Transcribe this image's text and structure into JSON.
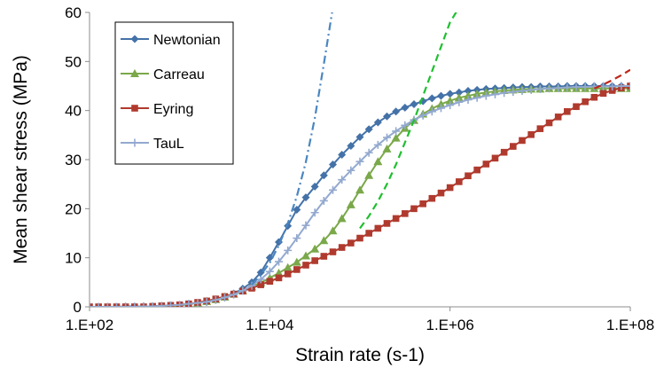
{
  "chart_data": {
    "type": "line",
    "title": "",
    "xlabel": "Strain rate (s-1)",
    "ylabel": "Mean shear stress (MPa)",
    "x_scale": "log",
    "xlim": [
      100,
      100000000
    ],
    "ylim": [
      0,
      60
    ],
    "x_ticks": [
      100,
      10000,
      1000000,
      100000000
    ],
    "x_tick_labels": [
      "1.E+02",
      "1.E+04",
      "1.E+06",
      "1.E+08"
    ],
    "y_ticks": [
      0,
      10,
      20,
      30,
      40,
      50,
      60
    ],
    "y_tick_labels": [
      "0",
      "10",
      "20",
      "30",
      "40",
      "50",
      "60"
    ],
    "grid": false,
    "legend_position": "top-left",
    "series": [
      {
        "name": "Newtonian",
        "color": "#4472a8",
        "marker": "diamond",
        "line": "solid",
        "x": [
          100,
          125.9,
          158.5,
          199.5,
          251.2,
          316.2,
          398.1,
          501.2,
          631,
          794.3,
          1000,
          1259,
          1585,
          1995,
          2512,
          3162,
          3981,
          5012,
          6310,
          7943,
          10000,
          12590,
          15850,
          19950,
          25120,
          31620,
          39810,
          50120,
          63100,
          79430,
          100000,
          125900,
          158500,
          199500,
          251200,
          316200,
          398100,
          501200,
          631000,
          794300,
          1000000,
          1259000,
          1585000,
          1995000,
          2512000,
          3162000,
          3981000,
          5012000,
          6310000,
          7943000,
          10000000,
          12590000,
          15850000,
          19950000,
          25120000,
          31620000,
          39810000,
          50120000,
          63100000,
          79430000,
          100000000
        ],
        "y": [
          0,
          0,
          0,
          0,
          0.1,
          0.1,
          0.1,
          0.1,
          0.2,
          0.3,
          0.4,
          0.6,
          0.8,
          1.1,
          1.5,
          2.0,
          2.7,
          3.7,
          5.0,
          7.0,
          10.0,
          13.2,
          16.5,
          19.8,
          22.3,
          24.5,
          26.8,
          29.0,
          31.0,
          32.8,
          34.6,
          36.2,
          37.6,
          38.8,
          39.8,
          40.6,
          41.3,
          41.9,
          42.5,
          43.0,
          43.4,
          43.7,
          44.0,
          44.2,
          44.4,
          44.5,
          44.6,
          44.7,
          44.8,
          44.8,
          44.9,
          44.9,
          44.9,
          45.0,
          45.0,
          45.0,
          45.0,
          45.0,
          45.0,
          45.0,
          45.0
        ]
      },
      {
        "name": "Carreau",
        "color": "#7aa84a",
        "marker": "triangle",
        "line": "solid",
        "x": [
          100,
          125.9,
          158.5,
          199.5,
          251.2,
          316.2,
          398.1,
          501.2,
          631,
          794.3,
          1000,
          1259,
          1585,
          1995,
          2512,
          3162,
          3981,
          5012,
          6310,
          7943,
          10000,
          12590,
          15850,
          19950,
          25120,
          31620,
          39810,
          50120,
          63100,
          79430,
          100000,
          125900,
          158500,
          199500,
          251200,
          316200,
          398100,
          501200,
          631000,
          794300,
          1000000,
          1259000,
          1585000,
          1995000,
          2512000,
          3162000,
          3981000,
          5012000,
          6310000,
          7943000,
          10000000,
          12590000,
          15850000,
          19950000,
          25120000,
          31620000,
          39810000,
          50120000,
          63100000,
          79430000,
          100000000
        ],
        "y": [
          -0.3,
          -0.3,
          -0.3,
          -0.3,
          -0.3,
          -0.2,
          -0.2,
          -0.1,
          0,
          0.1,
          0.3,
          0.5,
          0.8,
          1.1,
          1.5,
          2.0,
          2.6,
          3.3,
          4.1,
          4.9,
          5.9,
          6.9,
          8.0,
          9.1,
          10.4,
          11.8,
          13.5,
          15.5,
          18.0,
          20.8,
          23.8,
          26.8,
          29.6,
          32.2,
          34.4,
          36.4,
          38.0,
          39.3,
          40.4,
          41.3,
          42.0,
          42.6,
          43.0,
          43.4,
          43.7,
          43.9,
          44.1,
          44.2,
          44.3,
          44.4,
          44.4,
          44.5,
          44.5,
          44.5,
          44.5,
          44.5,
          44.5,
          44.5,
          44.5,
          44.5,
          44.5
        ]
      },
      {
        "name": "Eyring",
        "color": "#b03a2e",
        "marker": "square",
        "line": "solid",
        "x": [
          100,
          125.9,
          158.5,
          199.5,
          251.2,
          316.2,
          398.1,
          501.2,
          631,
          794.3,
          1000,
          1259,
          1585,
          1995,
          2512,
          3162,
          3981,
          5012,
          6310,
          7943,
          10000,
          12590,
          15850,
          19950,
          25120,
          31620,
          39810,
          50120,
          63100,
          79430,
          100000,
          125900,
          158500,
          199500,
          251200,
          316200,
          398100,
          501200,
          631000,
          794300,
          1000000,
          1259000,
          1585000,
          1995000,
          2512000,
          3162000,
          3981000,
          5012000,
          6310000,
          7943000,
          10000000,
          12590000,
          15850000,
          19950000,
          25120000,
          31620000,
          39810000,
          50120000,
          63100000,
          79430000,
          100000000
        ],
        "y": [
          0,
          0,
          0,
          0,
          0,
          0,
          0,
          0.1,
          0.2,
          0.3,
          0.4,
          0.6,
          0.9,
          1.2,
          1.6,
          2.1,
          2.6,
          3.2,
          3.8,
          4.5,
          5.2,
          5.9,
          6.7,
          7.6,
          8.5,
          9.4,
          10.3,
          11.2,
          12.1,
          13.0,
          14.0,
          15.0,
          16.0,
          17.0,
          18.0,
          19.0,
          20.0,
          21.0,
          22.1,
          23.2,
          24.3,
          25.5,
          26.7,
          27.9,
          29.1,
          30.3,
          31.5,
          32.7,
          33.9,
          35.1,
          36.3,
          37.5,
          38.7,
          39.8,
          40.8,
          41.8,
          42.7,
          43.5,
          44.1,
          44.6,
          45.0
        ]
      },
      {
        "name": "TauL",
        "color": "#93a9cf",
        "marker": "plus",
        "line": "solid",
        "x": [
          100,
          125.9,
          158.5,
          199.5,
          251.2,
          316.2,
          398.1,
          501.2,
          631,
          794.3,
          1000,
          1259,
          1585,
          1995,
          2512,
          3162,
          3981,
          5012,
          6310,
          7943,
          10000,
          12590,
          15850,
          19950,
          25120,
          31620,
          39810,
          50120,
          63100,
          79430,
          100000,
          125900,
          158500,
          199500,
          251200,
          316200,
          398100,
          501200,
          631000,
          794300,
          1000000,
          1259000,
          1585000,
          1995000,
          2512000,
          3162000,
          3981000,
          5012000,
          6310000,
          7943000,
          10000000,
          12590000,
          15850000,
          19950000,
          25120000,
          31620000,
          39810000,
          50120000,
          63100000,
          79430000,
          100000000
        ],
        "y": [
          0,
          0,
          0,
          0,
          0,
          0,
          0.1,
          0.1,
          0.2,
          0.3,
          0.4,
          0.6,
          0.8,
          1.0,
          1.4,
          1.9,
          2.5,
          3.3,
          4.3,
          5.6,
          7.2,
          9.2,
          11.5,
          14.0,
          16.6,
          19.2,
          21.6,
          23.8,
          25.9,
          27.8,
          29.6,
          31.4,
          33.0,
          34.5,
          35.8,
          37.0,
          38.1,
          39.0,
          39.8,
          40.5,
          41.1,
          41.7,
          42.2,
          42.6,
          43.0,
          43.3,
          43.6,
          43.8,
          44.0,
          44.2,
          44.4,
          44.5,
          44.6,
          44.7,
          44.8,
          44.8,
          44.9,
          44.9,
          44.9,
          45.0,
          45.0
        ]
      },
      {
        "name": "",
        "color": "#4a86c0",
        "marker": "none",
        "line": "dashdot",
        "x": [
          6310,
          7943,
          10000,
          12590,
          15850,
          19950,
          25120,
          31620,
          39810,
          50120
        ],
        "y": [
          4.5,
          6.5,
          9.0,
          12.5,
          17.0,
          22.5,
          29.5,
          38.5,
          49.5,
          61.0
        ]
      },
      {
        "name": "",
        "color": "#1fbf2f",
        "marker": "none",
        "line": "dash",
        "x": [
          100000,
          125900,
          158500,
          199500,
          251200,
          316200,
          398100,
          501200,
          631000,
          794300,
          1000000,
          1259000
        ],
        "y": [
          16.0,
          18.5,
          21.5,
          25.0,
          29.0,
          33.5,
          38.0,
          43.0,
          48.0,
          53.0,
          58.0,
          61.0
        ]
      },
      {
        "name": "",
        "color": "#c0271a",
        "marker": "none",
        "line": "dash",
        "x": [
          39810000,
          50120000,
          63100000,
          79430000,
          100000000
        ],
        "y": [
          44.5,
          45.3,
          46.2,
          47.2,
          48.3
        ]
      }
    ]
  }
}
